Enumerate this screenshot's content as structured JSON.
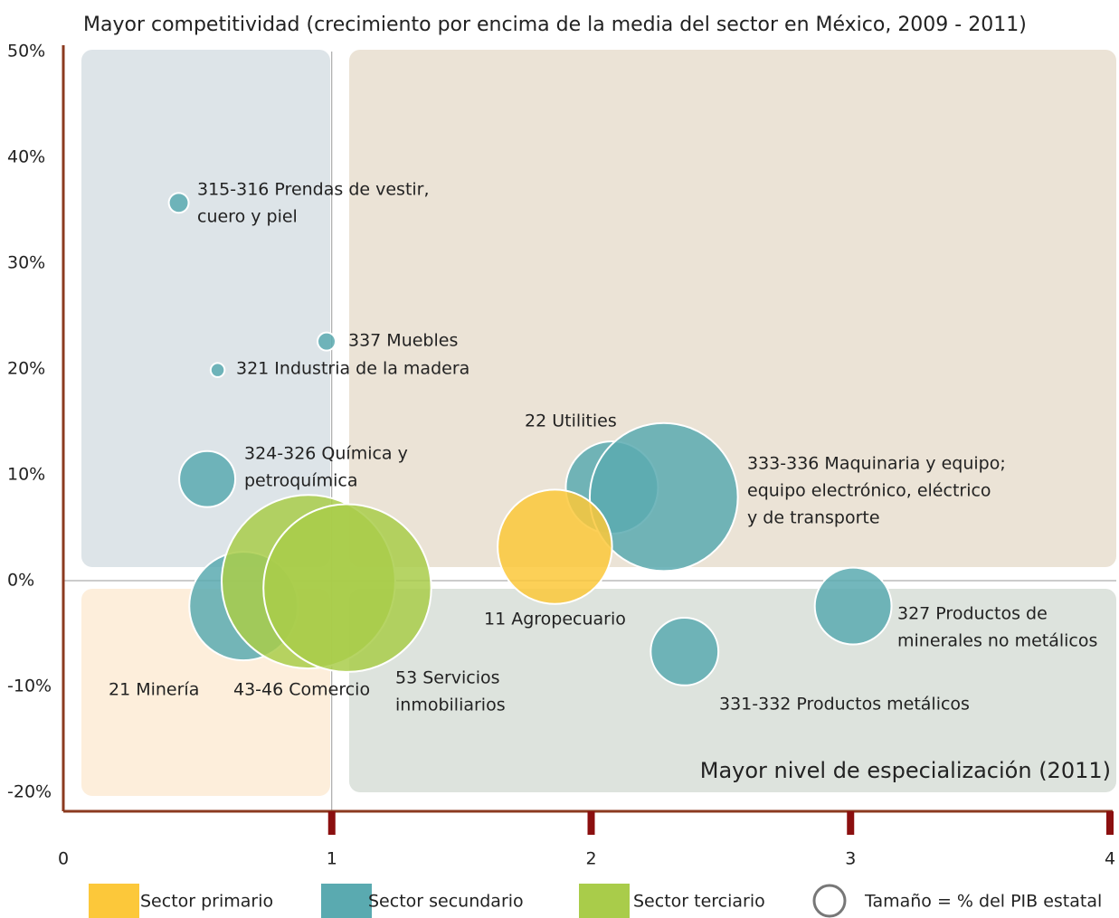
{
  "chart_data": {
    "type": "scatter",
    "title": "Mayor competitividad (crecimiento por encima de la media del sector en México, 2009 - 2011)",
    "annotation": "Mayor nivel de especialización (2011)",
    "size_legend": "Tamaño = %  del PIB estatal",
    "xlim": [
      0,
      4
    ],
    "xticks": [
      0,
      1,
      2,
      3,
      4
    ],
    "ylim": [
      -20,
      50
    ],
    "yticks": [
      {
        "value": 50,
        "label": "50%"
      },
      {
        "value": 40,
        "label": "40%"
      },
      {
        "value": 30,
        "label": "30%"
      },
      {
        "value": 20,
        "label": "20%"
      },
      {
        "value": 10,
        "label": "10%"
      },
      {
        "value": 0,
        "label": "0%"
      },
      {
        "value": -10,
        "label": "-10%"
      },
      {
        "value": -20,
        "label": "-20%"
      }
    ],
    "series": [
      {
        "name": "Sector primario",
        "color": "#fcc83a",
        "labels": [
          [
            "11 Agropecuario"
          ]
        ],
        "x": [
          1.86
        ],
        "values": [
          3.2
        ],
        "sizes": [
          40
        ]
      },
      {
        "name": "Sector secundario",
        "color": "#5aaab0",
        "labels": [
          [
            "315-316 Prendas de vestir,",
            "cuero y piel"
          ],
          [
            "337 Muebles"
          ],
          [
            "321 Industria de la madera"
          ],
          [
            "324-326 Química y",
            "petroquímica"
          ],
          [
            "21 Minería"
          ],
          [
            "22 Utilities"
          ],
          [
            "333-336 Maquinaria y equipo;",
            "equipo electrónico, eléctrico",
            "y de transporte"
          ],
          [
            "327 Productos de",
            "minerales no metálicos"
          ],
          [
            "331-332 Productos metálicos"
          ]
        ],
        "x": [
          0.41,
          0.98,
          0.56,
          0.52,
          0.66,
          2.08,
          2.28,
          3.01,
          2.36
        ],
        "values": [
          35.7,
          22.6,
          19.9,
          9.6,
          -2.4,
          8.8,
          7.9,
          -2.4,
          -6.7
        ],
        "sizes": [
          1.2,
          1.0,
          0.6,
          9.6,
          36,
          26,
          67,
          18,
          14
        ]
      },
      {
        "name": "Sector terciario",
        "color": "#a9cc4a",
        "labels": [
          [
            "43-46 Comercio"
          ],
          [
            "53 Servicios",
            "inmobiliarios"
          ]
        ],
        "x": [
          0.91,
          1.06
        ],
        "values": [
          -0.1,
          -0.7
        ],
        "sizes": [
          92,
          86
        ]
      }
    ]
  }
}
